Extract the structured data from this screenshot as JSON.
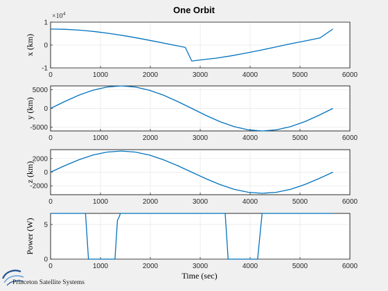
{
  "chart_data": {
    "type": "line",
    "title": "One Orbit",
    "xlabel": "Time (sec)",
    "subplots": [
      {
        "id": "x",
        "ylabel": "x (km)",
        "exponent_label": "×10",
        "exponent_power": "4",
        "xlim": [
          0,
          6000
        ],
        "ylim": [
          -1,
          1
        ],
        "xticks": [
          "0",
          "1000",
          "2000",
          "3000",
          "4000",
          "5000",
          "6000"
        ],
        "yticks": [
          "-1",
          "0",
          "1"
        ],
        "ytick_values": [
          -1,
          0,
          1
        ],
        "series": [
          {
            "x": [
              0,
              300,
              600,
              900,
              1200,
              1500,
              1800,
              2100,
              2400,
              2700,
              2830,
              3000,
              3300,
              3600,
              3900,
              4200,
              4500,
              4800,
              5100,
              5400,
              5660
            ],
            "y": [
              0.7,
              0.687,
              0.648,
              0.585,
              0.501,
              0.399,
              0.283,
              0.158,
              0.028,
              -0.102,
              -0.7,
              -0.65,
              -0.58,
              -0.48,
              -0.36,
              -0.23,
              -0.09,
              0.05,
              0.18,
              0.31,
              0.7
            ]
          }
        ]
      },
      {
        "id": "y",
        "ylabel": "y (km)",
        "xlim": [
          0,
          6000
        ],
        "ylim": [
          -6000,
          6000
        ],
        "xticks": [
          "0",
          "1000",
          "2000",
          "3000",
          "4000",
          "5000",
          "6000"
        ],
        "yticks": [
          "-5000",
          "0",
          "5000"
        ],
        "ytick_values": [
          -5000,
          0,
          5000
        ],
        "series": [
          {
            "x": [
              0,
              283,
              566,
              849,
              1132,
              1415,
              1698,
              1981,
              2264,
              2547,
              2830,
              3113,
              3396,
              3679,
              3962,
              4245,
              4528,
              4811,
              5094,
              5377,
              5660
            ],
            "y": [
              0,
              1854,
              3527,
              4854,
              5706,
              6000,
              5706,
              4854,
              3527,
              1854,
              0,
              -1854,
              -3527,
              -4854,
              -5706,
              -6000,
              -5706,
              -4854,
              -3527,
              -1854,
              0
            ]
          }
        ]
      },
      {
        "id": "z",
        "ylabel": "z (km)",
        "xlim": [
          0,
          6000
        ],
        "ylim": [
          -3300,
          3300
        ],
        "xticks": [
          "0",
          "1000",
          "2000",
          "3000",
          "4000",
          "5000",
          "6000"
        ],
        "yticks": [
          "-2000",
          "0",
          "2000"
        ],
        "ytick_values": [
          -2000,
          0,
          2000
        ],
        "series": [
          {
            "x": [
              0,
              283,
              566,
              849,
              1132,
              1415,
              1698,
              1981,
              2264,
              2547,
              2830,
              3113,
              3396,
              3679,
              3962,
              4245,
              4528,
              4811,
              5094,
              5377,
              5660
            ],
            "y": [
              0,
              958,
              1822,
              2508,
              2948,
              3100,
              2948,
              2508,
              1822,
              958,
              0,
              -958,
              -1822,
              -2508,
              -2948,
              -3100,
              -2948,
              -2508,
              -1822,
              -958,
              0
            ]
          }
        ]
      },
      {
        "id": "power",
        "ylabel": "Power (W)",
        "xlim": [
          0,
          6000
        ],
        "ylim": [
          0,
          6.6
        ],
        "xticks": [
          "0",
          "1000",
          "2000",
          "3000",
          "4000",
          "5000",
          "6000"
        ],
        "yticks": [
          "0",
          "5"
        ],
        "ytick_values": [
          0,
          5
        ],
        "series": [
          {
            "x": [
              0,
              700,
              760,
              1290,
              1340,
              1370,
              1400,
              3500,
              3560,
              4150,
              4240,
              5660
            ],
            "y": [
              6.6,
              6.6,
              0,
              0,
              5.6,
              6.0,
              6.6,
              6.6,
              0,
              0,
              6.6,
              6.6
            ]
          }
        ]
      }
    ],
    "grid": true
  },
  "footer": {
    "logo_text": "Princeton Satellite Systems"
  },
  "colors": {
    "series": "#0072bd",
    "background": "#f0f0f0"
  }
}
